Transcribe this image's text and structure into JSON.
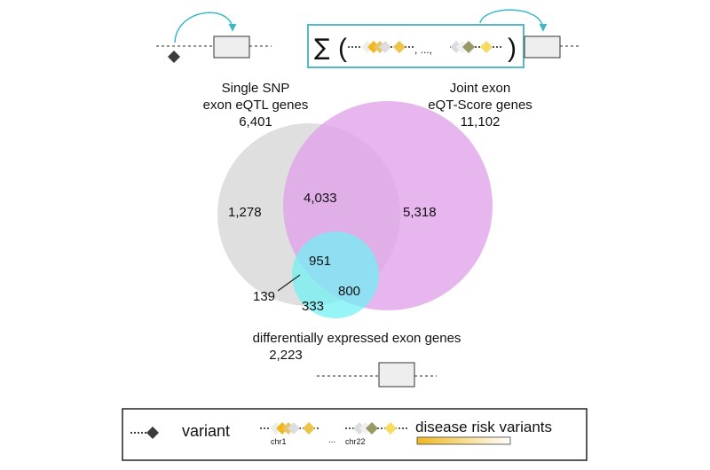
{
  "sets": {
    "single_snp": {
      "title_line1": "Single SNP",
      "title_line2": "exon eQTL genes",
      "total": "6,401",
      "color": "#d9d9d9"
    },
    "joint": {
      "title_line1": "Joint exon",
      "title_line2": "eQT-Score genes",
      "total": "11,102",
      "color": "#e2a6ea"
    },
    "diff": {
      "title": "differentially expressed exon genes",
      "total": "2,223",
      "color": "#7ef0f2"
    }
  },
  "regions": {
    "single_only": "1,278",
    "single_joint": "4,033",
    "joint_only": "5,318",
    "all_three": "951",
    "single_diff": "139",
    "joint_diff": "800",
    "diff_only": "333"
  },
  "formula": {
    "sum_symbol": "∑",
    "open_paren": "(",
    "ellipsis": ", ...,",
    "close_paren": ")"
  },
  "legend": {
    "variant_label": "variant",
    "chr1_label": "chr1",
    "dots": "...",
    "chr22_label": "chr22",
    "risk_label": "disease risk variants",
    "gradient_start_color": "#f0b81e",
    "gradient_end_color": "#ffffff"
  },
  "colors": {
    "arrow": "#3cb8c8",
    "variant": "#3a3a3a",
    "gene_box": "#eeeeee",
    "formula_border": "#56b9c8"
  }
}
